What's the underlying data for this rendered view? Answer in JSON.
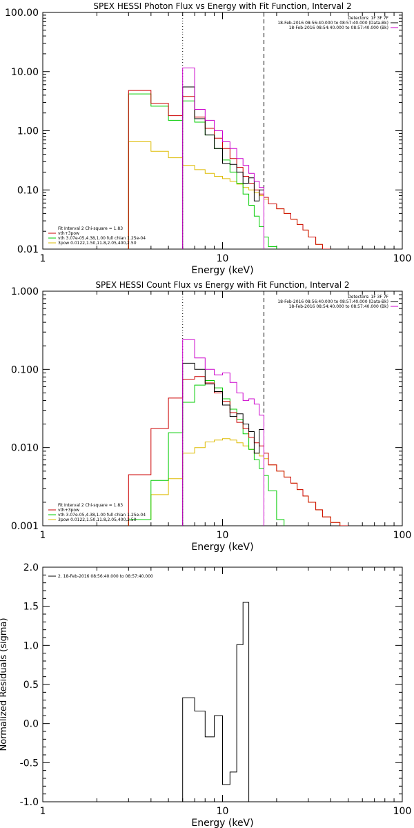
{
  "chart_data": [
    {
      "type": "line",
      "title": "SPEX HESSI Photon Flux vs Energy with Fit Function, Interval 2",
      "xlabel": "Energy (keV)",
      "ylabel": "",
      "xscale": "log",
      "yscale": "log",
      "xlim": [
        1,
        100
      ],
      "ylim": [
        0.01,
        100
      ],
      "x_ticks": [
        1,
        10,
        100
      ],
      "x_tick_labels": [
        "1",
        "10",
        "100"
      ],
      "y_ticks": [
        0.01,
        0.1,
        1,
        10,
        100
      ],
      "y_tick_labels": [
        "0.01",
        "0.10",
        "1.00",
        "10.00",
        "100.00"
      ],
      "vlines": [
        {
          "x": 6,
          "style": "dotted",
          "color": "#000000"
        },
        {
          "x": 17,
          "style": "dashed",
          "color": "#000000"
        }
      ],
      "legend_topright": [
        {
          "text": "Detectors: 1F 3F 7F",
          "color": ""
        },
        {
          "text": "18-Feb-2016 08:56:40.000 to 08:57:40.000 (Data-Bk)",
          "color": "#000000"
        },
        {
          "text": "18-Feb-2016 08:54:40.000 to 08:57:40.000 (Bk)",
          "color": "#cc00cc"
        }
      ],
      "legend_bottomleft": [
        {
          "text": "Fit Interval 2   Chi-square = 1.83",
          "color": ""
        },
        {
          "text": "vth+3pow",
          "color": "#cc0000"
        },
        {
          "text": "vth 3.07e-05,4.38,1.00  full chian 1.25e-04",
          "color": "#00cc00"
        },
        {
          "text": "3pow 0.0122,1.50,11.8,2.05,400,2.50",
          "color": "#ddbb00"
        }
      ],
      "series": [
        {
          "color": "#ddbb00",
          "edges": [
            3,
            4,
            5,
            6,
            7,
            8,
            9,
            10,
            11,
            12,
            13,
            14,
            15,
            16,
            17,
            18,
            20,
            22,
            24,
            26,
            28,
            30,
            33,
            36,
            40
          ],
          "values": [
            0.65,
            0.45,
            0.35,
            0.26,
            0.22,
            0.19,
            0.17,
            0.155,
            0.14,
            0.125,
            0.11,
            0.1,
            0.09,
            0.08,
            0.07,
            0.058,
            0.048,
            0.04,
            0.032,
            0.026,
            0.021,
            0.016,
            0.012,
            0.0095
          ]
        },
        {
          "color": "#00cc00",
          "edges": [
            3,
            4,
            5,
            6,
            7,
            8,
            9,
            10,
            11,
            12,
            13,
            14,
            15,
            16,
            17,
            18,
            20
          ],
          "values": [
            4.2,
            2.6,
            1.5,
            3.2,
            1.4,
            0.85,
            0.5,
            0.32,
            0.2,
            0.13,
            0.085,
            0.055,
            0.036,
            0.024,
            0.016,
            0.011
          ]
        },
        {
          "color": "#cc0000",
          "edges": [
            3,
            4,
            5,
            6,
            7,
            8,
            9,
            10,
            11,
            12,
            13,
            14,
            15,
            16,
            17,
            18,
            20,
            22,
            24,
            26,
            28,
            30,
            33,
            36,
            40
          ],
          "values": [
            4.8,
            2.9,
            1.8,
            3.8,
            1.7,
            1.1,
            0.75,
            0.5,
            0.34,
            0.24,
            0.17,
            0.13,
            0.1,
            0.085,
            0.075,
            0.058,
            0.048,
            0.04,
            0.032,
            0.026,
            0.021,
            0.016,
            0.012,
            0.0095
          ]
        },
        {
          "color": "#000000",
          "edges": [
            6,
            7,
            8,
            9,
            10,
            11,
            12,
            13,
            14,
            15,
            16,
            17
          ],
          "values": [
            5.5,
            1.6,
            0.85,
            0.5,
            0.28,
            0.27,
            0.2,
            0.13,
            0.16,
            0.065,
            0.1
          ]
        },
        {
          "color": "#cc00cc",
          "edges": [
            6,
            7,
            8,
            9,
            10,
            11,
            12,
            13,
            14,
            15,
            16,
            17
          ],
          "values": [
            11.5,
            2.3,
            1.5,
            1.0,
            0.65,
            0.5,
            0.34,
            0.26,
            0.19,
            0.14,
            0.11
          ]
        }
      ]
    },
    {
      "type": "line",
      "title": "SPEX HESSI Count Flux vs Energy with Fit Function, Interval 2",
      "xlabel": "Energy (keV)",
      "ylabel": "",
      "xscale": "log",
      "yscale": "log",
      "xlim": [
        1,
        100
      ],
      "ylim": [
        0.001,
        1
      ],
      "x_ticks": [
        1,
        10,
        100
      ],
      "x_tick_labels": [
        "1",
        "10",
        "100"
      ],
      "y_ticks": [
        0.001,
        0.01,
        0.1,
        1
      ],
      "y_tick_labels": [
        "0.001",
        "0.010",
        "0.100",
        "1.000"
      ],
      "vlines": [
        {
          "x": 6,
          "style": "dotted",
          "color": "#000000"
        },
        {
          "x": 17,
          "style": "dashed",
          "color": "#000000"
        }
      ],
      "legend_topright": [
        {
          "text": "Detectors: 1F 3F 7F",
          "color": ""
        },
        {
          "text": "18-Feb-2016 08:56:40.000 to 08:57:40.000 (Data-Bk)",
          "color": "#000000"
        },
        {
          "text": "18-Feb-2016 08:54:40.000 to 08:57:40.000 (Bk)",
          "color": "#cc00cc"
        }
      ],
      "legend_bottomleft": [
        {
          "text": "Fit Interval 2   Chi-square = 1.83",
          "color": ""
        },
        {
          "text": "vth+3pow",
          "color": "#cc0000"
        },
        {
          "text": "vth 3.07e-05,4.38,1.00  full chian 1.25e-04",
          "color": "#00cc00"
        },
        {
          "text": "3pow 0.0122,1.50,11.8,2.05,400,2.50",
          "color": "#ddbb00"
        }
      ],
      "series": [
        {
          "color": "#ddbb00",
          "edges": [
            3,
            4,
            5,
            6,
            7,
            8,
            9,
            10,
            11,
            12,
            13,
            14,
            15,
            16,
            17,
            18,
            20,
            22,
            24,
            26,
            28,
            30,
            33,
            36,
            40,
            45,
            50
          ],
          "values": [
            0.0012,
            0.0025,
            0.004,
            0.0085,
            0.01,
            0.0118,
            0.0125,
            0.013,
            0.0125,
            0.0115,
            0.0105,
            0.0095,
            0.0085,
            0.0078,
            0.0072,
            0.006,
            0.005,
            0.0042,
            0.0035,
            0.0029,
            0.0024,
            0.002,
            0.0016,
            0.0013,
            0.0011,
            0.001
          ]
        },
        {
          "color": "#00cc00",
          "edges": [
            3,
            4,
            5,
            6,
            7,
            8,
            9,
            10,
            11,
            12,
            13,
            14,
            15,
            16,
            17,
            18,
            20,
            22
          ],
          "values": [
            0.0012,
            0.0038,
            0.0155,
            0.038,
            0.063,
            0.072,
            0.058,
            0.042,
            0.031,
            0.023,
            0.015,
            0.0095,
            0.007,
            0.0054,
            0.0044,
            0.0028,
            0.0012
          ]
        },
        {
          "color": "#cc0000",
          "edges": [
            3,
            4,
            5,
            6,
            7,
            8,
            9,
            10,
            11,
            12,
            13,
            14,
            15,
            16,
            17,
            18,
            20,
            22,
            24,
            26,
            28,
            30,
            33,
            36,
            40,
            45,
            50
          ],
          "values": [
            0.0045,
            0.0175,
            0.043,
            0.075,
            0.081,
            0.067,
            0.05,
            0.039,
            0.028,
            0.021,
            0.0175,
            0.0135,
            0.0115,
            0.0105,
            0.0085,
            0.006,
            0.005,
            0.0042,
            0.0035,
            0.0029,
            0.0024,
            0.002,
            0.0016,
            0.0013,
            0.0011,
            0.001
          ]
        },
        {
          "color": "#000000",
          "edges": [
            6,
            7,
            8,
            9,
            10,
            11,
            12,
            13,
            14,
            15,
            16,
            17
          ],
          "values": [
            0.12,
            0.1,
            0.065,
            0.052,
            0.035,
            0.025,
            0.027,
            0.02,
            0.016,
            0.0085,
            0.017
          ]
        },
        {
          "color": "#cc00cc",
          "edges": [
            6,
            7,
            8,
            9,
            10,
            11,
            12,
            13,
            14,
            15,
            16,
            17
          ],
          "values": [
            0.24,
            0.14,
            0.1,
            0.085,
            0.09,
            0.068,
            0.05,
            0.04,
            0.042,
            0.036,
            0.026
          ]
        }
      ]
    },
    {
      "type": "line",
      "title": "",
      "xlabel": "Energy (keV)",
      "ylabel": "Normalized Residuals (sigma)",
      "xscale": "log",
      "yscale": "linear",
      "xlim": [
        1,
        100
      ],
      "ylim": [
        -1.0,
        2.0
      ],
      "x_ticks": [
        1,
        10,
        100
      ],
      "x_tick_labels": [
        "1",
        "10",
        "100"
      ],
      "y_ticks": [
        -1.0,
        -0.5,
        0.0,
        0.5,
        1.0,
        1.5,
        2.0
      ],
      "y_tick_labels": [
        "-1.0",
        "-0.5",
        "0.0",
        "0.5",
        "1.0",
        "1.5",
        "2.0"
      ],
      "vlines": [],
      "legend_topleft": [
        {
          "text": "2. 18-Feb-2016 08:56:40.000 to 08:57:40.000",
          "color": "#000000"
        }
      ],
      "series": [
        {
          "color": "#000000",
          "edges": [
            6,
            7,
            8,
            9,
            10,
            11,
            12,
            13,
            14,
            15
          ],
          "values": [
            0.33,
            0.16,
            -0.17,
            0.1,
            -0.78,
            -0.62,
            1.01,
            1.55,
            -1.0
          ]
        }
      ]
    }
  ]
}
